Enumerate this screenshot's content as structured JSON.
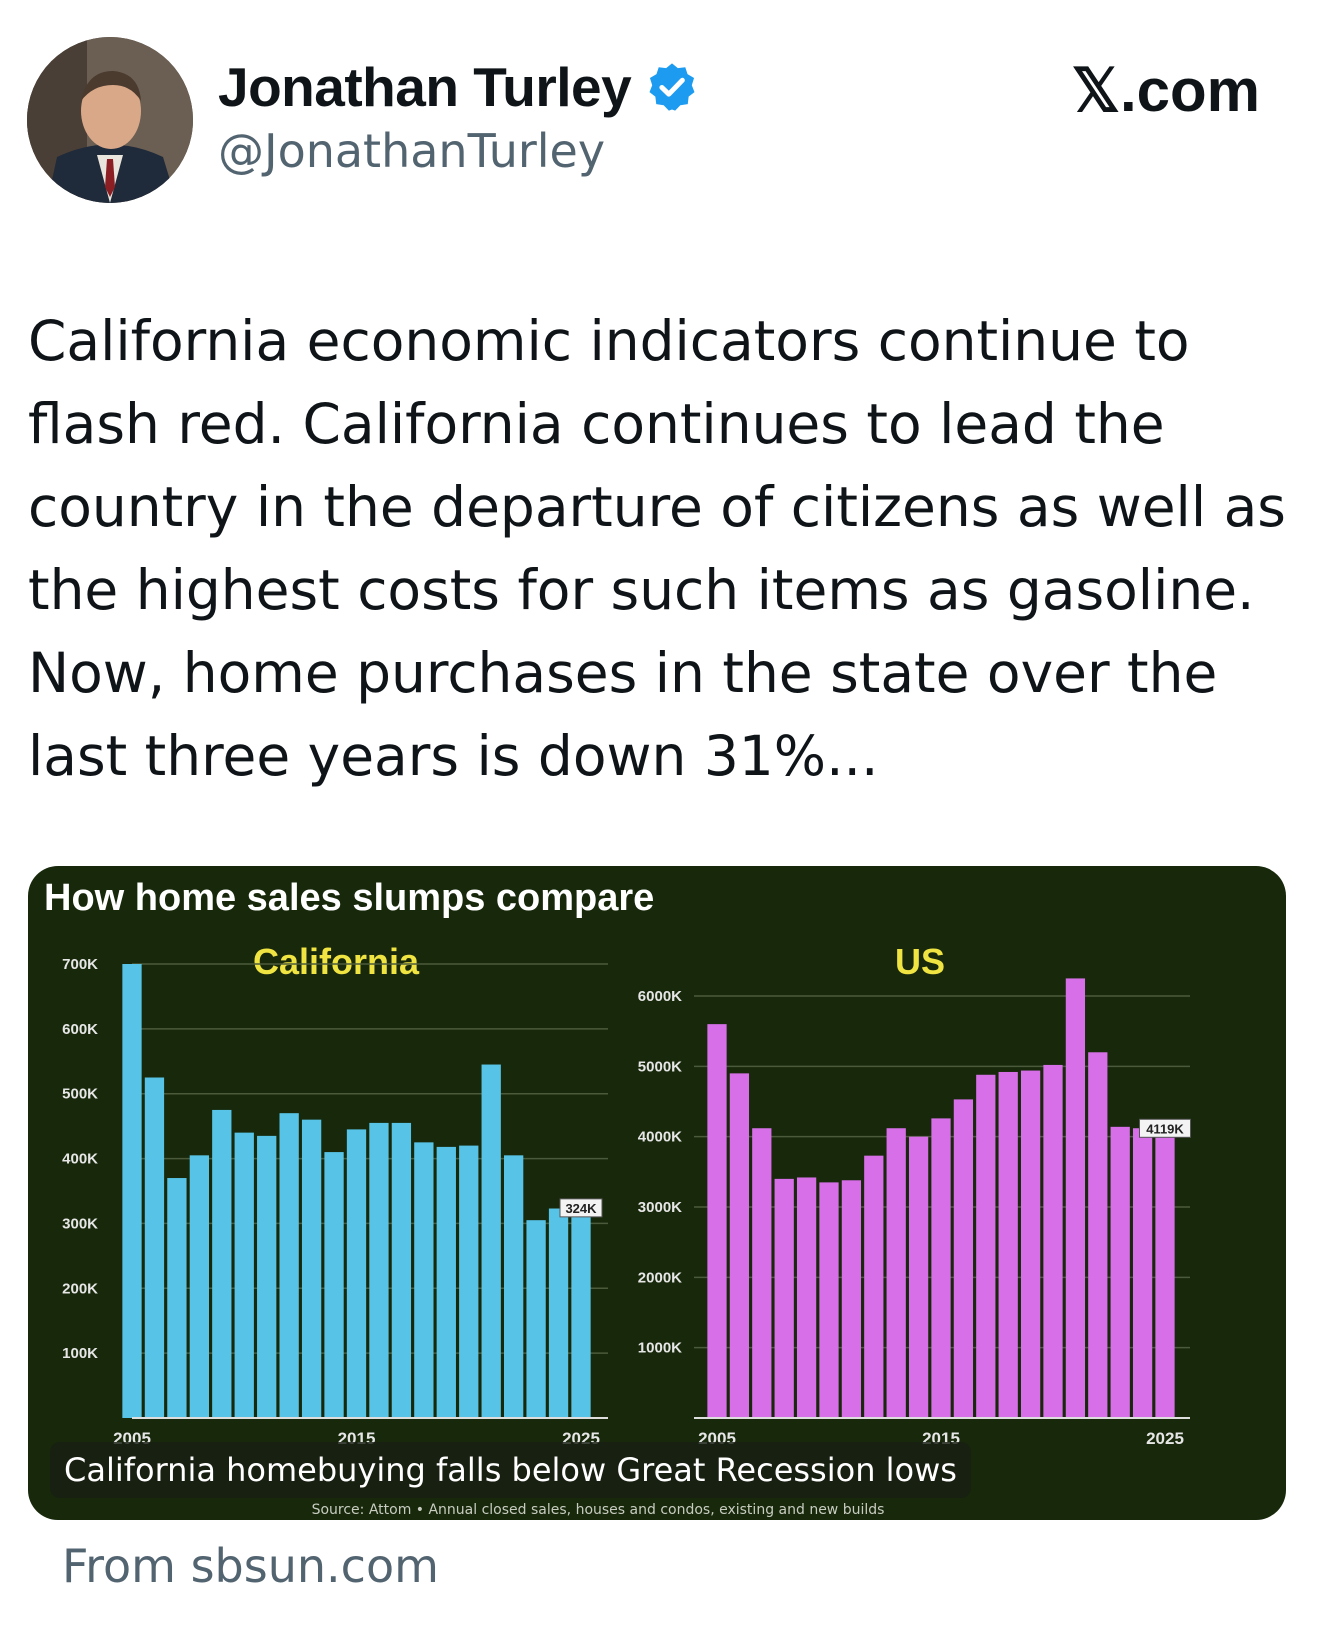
{
  "author": {
    "display_name": "Jonathan Turley",
    "handle": "@JonathanTurley",
    "verified": true
  },
  "brand": "𝕏.com",
  "tweet": {
    "text": "California economic indicators continue to flash red. California continues to lead the country in the departure of citizens as well as the highest costs for such items as gasoline. Now, home purchases in the state over the last three years is down 31%..."
  },
  "media": {
    "title": "How home sales slumps compare",
    "source": "Source: Attom • Annual closed sales, houses and condos, existing and new builds",
    "caption": "California homebuying falls below Great Recession lows"
  },
  "link_domain": "From sbsun.com",
  "colors": {
    "chart_background": "#17280b",
    "california_bars": "#57c3e6",
    "us_bars": "#d66fe8",
    "subtitle": "#f0e442",
    "verified_badge": "#1d9bf0"
  },
  "chart_data": [
    {
      "type": "bar",
      "title": "California",
      "categories": [
        "2005",
        "2006",
        "2007",
        "2008",
        "2009",
        "2010",
        "2011",
        "2012",
        "2013",
        "2014",
        "2015",
        "2016",
        "2017",
        "2018",
        "2019",
        "2020",
        "2021",
        "2022",
        "2023",
        "2024",
        "2025"
      ],
      "tick_labels": [
        "700K",
        "600K",
        "500K",
        "400K",
        "300K",
        "200K",
        "100K"
      ],
      "x_tick_labels": [
        "2005",
        "2015",
        "2025"
      ],
      "values": [
        700,
        525,
        370,
        405,
        475,
        440,
        435,
        470,
        460,
        410,
        445,
        455,
        455,
        425,
        418,
        420,
        545,
        405,
        305,
        323,
        324
      ],
      "data_label": "324K",
      "unit": "K",
      "ylim": [
        0,
        700
      ],
      "grid": true
    },
    {
      "type": "bar",
      "title": "US",
      "categories": [
        "2005",
        "2006",
        "2007",
        "2008",
        "2009",
        "2010",
        "2011",
        "2012",
        "2013",
        "2014",
        "2015",
        "2016",
        "2017",
        "2018",
        "2019",
        "2020",
        "2021",
        "2022",
        "2023",
        "2024",
        "2025"
      ],
      "tick_labels": [
        "6000K",
        "5000K",
        "4000K",
        "3000K",
        "2000K",
        "1000K"
      ],
      "x_tick_labels": [
        "2005",
        "2015",
        "2025"
      ],
      "values": [
        5600,
        4900,
        4120,
        3400,
        3420,
        3350,
        3380,
        3730,
        4120,
        4000,
        4260,
        4530,
        4880,
        4920,
        4940,
        5020,
        6250,
        5200,
        4140,
        4120,
        4119
      ],
      "data_label": "4119K",
      "unit": "K",
      "ylim": [
        0,
        6000
      ],
      "grid": true
    }
  ]
}
